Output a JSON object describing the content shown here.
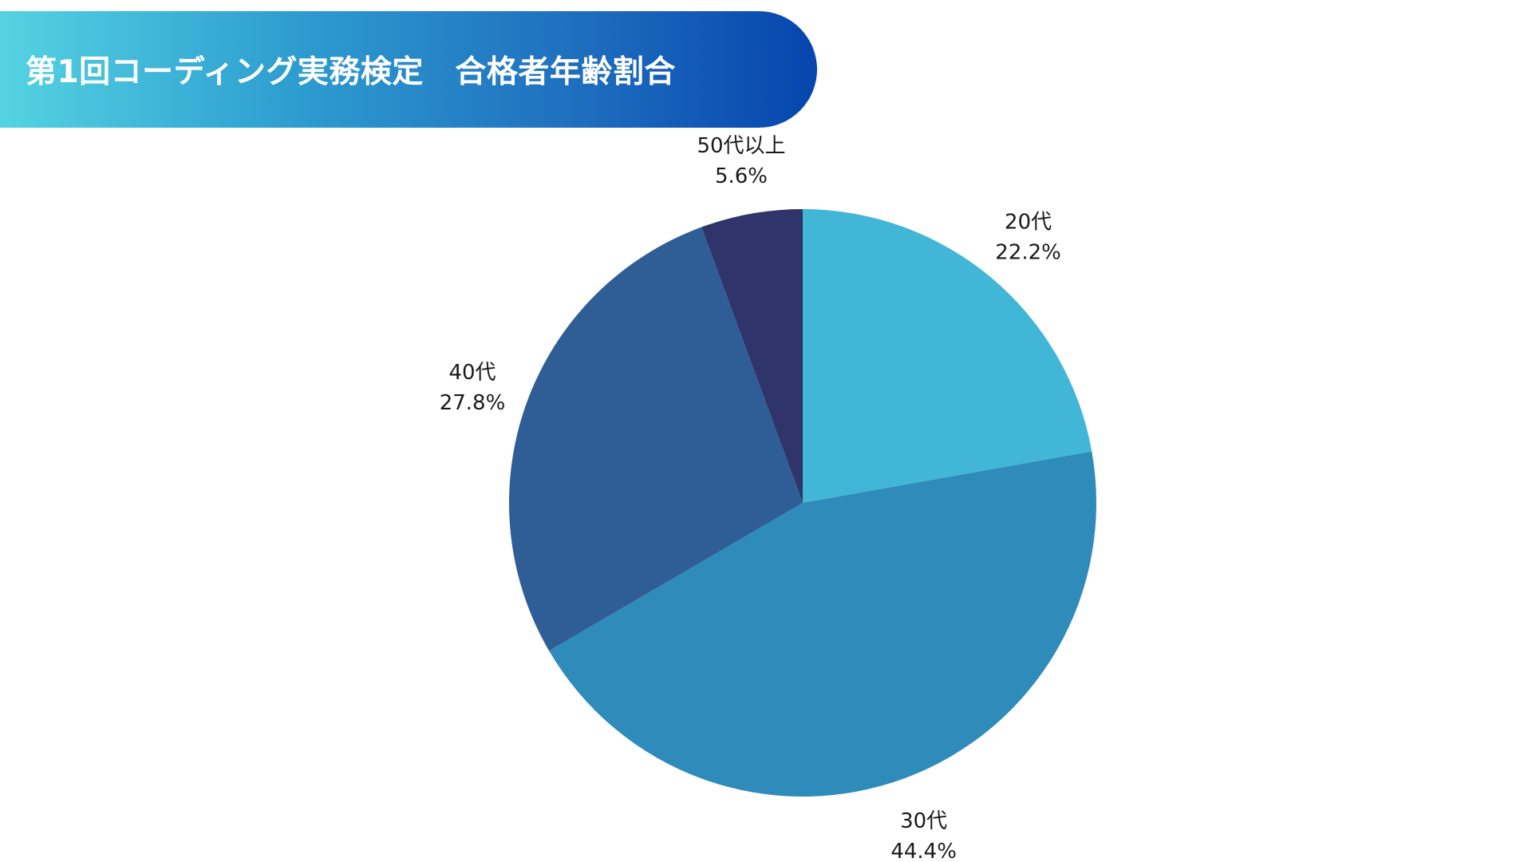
{
  "title": "第1回コーディング実務検定　合格者年齢割合",
  "chart_data": {
    "type": "pie",
    "slices": [
      {
        "label": "20代",
        "value": 22.2,
        "display": "22.2%",
        "color": "#42b6d6"
      },
      {
        "label": "30代",
        "value": 44.4,
        "display": "44.4%",
        "color": "#2e8bba"
      },
      {
        "label": "40代",
        "value": 27.8,
        "display": "27.8%",
        "color": "#2e5e95"
      },
      {
        "label": "50代以上",
        "value": 5.6,
        "display": "5.6%",
        "color": "#2f346a"
      }
    ],
    "start": "12 o'clock",
    "direction": "clockwise",
    "legend": "none"
  }
}
